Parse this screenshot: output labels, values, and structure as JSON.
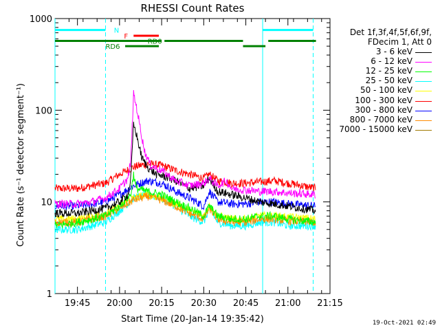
{
  "chart_data": {
    "type": "line",
    "title": "RHESSI Count Rates",
    "xlabel": "Start Time (20-Jan-14 19:35:42)",
    "ylabel": "Count Rate (s⁻¹ detector segment⁻¹)",
    "yscale": "log",
    "ylim": [
      1,
      1000
    ],
    "y_ticks": [
      {
        "value": 1,
        "label": "1"
      },
      {
        "value": 10,
        "label": "10"
      },
      {
        "value": 100,
        "label": "100"
      },
      {
        "value": 1000,
        "label": "1000"
      }
    ],
    "xlim": [
      "19:37",
      "21:15"
    ],
    "x_ticks": [
      "19:45",
      "20:00",
      "20:15",
      "20:30",
      "20:45",
      "21:00",
      "21:15"
    ],
    "legend_placement": "right",
    "legend_title": [
      "Det 1f,3f,4f,5f,6f,9f,",
      "FDecim 1, Att 0"
    ],
    "series": [
      {
        "name": "3 - 6 keV",
        "color": "#000000",
        "points": [
          [
            "19:37",
            7.5
          ],
          [
            "19:45",
            7.5
          ],
          [
            "19:55",
            8.5
          ],
          [
            "20:00",
            10
          ],
          [
            "20:03",
            12
          ],
          [
            "20:04",
            18
          ],
          [
            "20:05",
            70
          ],
          [
            "20:06",
            55
          ],
          [
            "20:07",
            40
          ],
          [
            "20:08",
            30
          ],
          [
            "20:10",
            24
          ],
          [
            "20:13",
            20
          ],
          [
            "20:16",
            19
          ],
          [
            "20:20",
            17
          ],
          [
            "20:25",
            14
          ],
          [
            "20:30",
            15
          ],
          [
            "20:32",
            18
          ],
          [
            "20:35",
            13
          ],
          [
            "20:40",
            12
          ],
          [
            "20:45",
            11
          ],
          [
            "20:50",
            10
          ],
          [
            "20:55",
            9.5
          ],
          [
            "21:00",
            9
          ],
          [
            "21:05",
            8.5
          ],
          [
            "21:10",
            8
          ]
        ]
      },
      {
        "name": "6 - 12 keV",
        "color": "#ff00ff",
        "points": [
          [
            "19:37",
            9.5
          ],
          [
            "19:45",
            9.5
          ],
          [
            "19:50",
            10
          ],
          [
            "19:55",
            11
          ],
          [
            "20:00",
            14
          ],
          [
            "20:03",
            18
          ],
          [
            "20:04",
            28
          ],
          [
            "20:05",
            150
          ],
          [
            "20:06",
            110
          ],
          [
            "20:07",
            75
          ],
          [
            "20:08",
            50
          ],
          [
            "20:09",
            35
          ],
          [
            "20:11",
            25
          ],
          [
            "20:15",
            22
          ],
          [
            "20:20",
            17
          ],
          [
            "20:25",
            15
          ],
          [
            "20:30",
            16
          ],
          [
            "20:32",
            18
          ],
          [
            "20:35",
            15
          ],
          [
            "20:38",
            17
          ],
          [
            "20:40",
            14
          ],
          [
            "20:45",
            13.5
          ],
          [
            "20:50",
            13
          ],
          [
            "20:55",
            13
          ],
          [
            "21:00",
            12.5
          ],
          [
            "21:10",
            12
          ]
        ]
      },
      {
        "name": "12 - 25 keV",
        "color": "#00ff00",
        "points": [
          [
            "19:37",
            5.5
          ],
          [
            "19:45",
            6
          ],
          [
            "19:55",
            7
          ],
          [
            "20:00",
            9
          ],
          [
            "20:04",
            12
          ],
          [
            "20:05",
            20
          ],
          [
            "20:06",
            14
          ],
          [
            "20:10",
            13
          ],
          [
            "20:15",
            12
          ],
          [
            "20:20",
            10
          ],
          [
            "20:25",
            8.5
          ],
          [
            "20:30",
            7
          ],
          [
            "20:32",
            9
          ],
          [
            "20:35",
            7
          ],
          [
            "20:40",
            6.5
          ],
          [
            "20:45",
            6.5
          ],
          [
            "20:50",
            7
          ],
          [
            "20:55",
            7
          ],
          [
            "21:00",
            6.5
          ],
          [
            "21:10",
            6
          ]
        ]
      },
      {
        "name": "25 - 50 keV",
        "color": "#00ffff",
        "points": [
          [
            "19:37",
            5
          ],
          [
            "19:45",
            5
          ],
          [
            "19:55",
            6
          ],
          [
            "20:00",
            8
          ],
          [
            "20:05",
            11
          ],
          [
            "20:10",
            12
          ],
          [
            "20:15",
            11
          ],
          [
            "20:20",
            9
          ],
          [
            "20:25",
            7
          ],
          [
            "20:30",
            6
          ],
          [
            "20:32",
            8.5
          ],
          [
            "20:35",
            6
          ],
          [
            "20:40",
            5.5
          ],
          [
            "20:45",
            5.5
          ],
          [
            "20:50",
            6
          ],
          [
            "20:55",
            6
          ],
          [
            "21:00",
            5.5
          ],
          [
            "21:10",
            5.5
          ]
        ]
      },
      {
        "name": "50 - 100 keV",
        "color": "#ffff00",
        "points": [
          [
            "19:37",
            6.5
          ],
          [
            "19:45",
            6.5
          ],
          [
            "19:55",
            7.5
          ],
          [
            "20:00",
            9
          ],
          [
            "20:05",
            11
          ],
          [
            "20:10",
            12
          ],
          [
            "20:15",
            11
          ],
          [
            "20:20",
            9.5
          ],
          [
            "20:25",
            8
          ],
          [
            "20:30",
            7
          ],
          [
            "20:32",
            9
          ],
          [
            "20:35",
            7
          ],
          [
            "20:40",
            6.5
          ],
          [
            "20:45",
            6.5
          ],
          [
            "20:50",
            7
          ],
          [
            "20:55",
            7
          ],
          [
            "21:00",
            6.8
          ],
          [
            "21:10",
            6.5
          ]
        ]
      },
      {
        "name": "100 - 300 keV",
        "color": "#ff0000",
        "points": [
          [
            "19:37",
            14
          ],
          [
            "19:45",
            14
          ],
          [
            "19:50",
            15
          ],
          [
            "19:55",
            16
          ],
          [
            "20:00",
            20
          ],
          [
            "20:05",
            24
          ],
          [
            "20:10",
            26
          ],
          [
            "20:15",
            25
          ],
          [
            "20:20",
            22
          ],
          [
            "20:25",
            20
          ],
          [
            "20:30",
            18
          ],
          [
            "20:32",
            20
          ],
          [
            "20:35",
            17
          ],
          [
            "20:40",
            16
          ],
          [
            "20:45",
            16
          ],
          [
            "20:50",
            16.5
          ],
          [
            "20:55",
            17
          ],
          [
            "21:00",
            16
          ],
          [
            "21:05",
            15
          ],
          [
            "21:10",
            14
          ]
        ]
      },
      {
        "name": "300 - 800 keV",
        "color": "#0000ff",
        "points": [
          [
            "19:37",
            9
          ],
          [
            "19:45",
            9
          ],
          [
            "19:55",
            10
          ],
          [
            "20:00",
            12
          ],
          [
            "20:05",
            15
          ],
          [
            "20:10",
            17
          ],
          [
            "20:15",
            16
          ],
          [
            "20:20",
            13
          ],
          [
            "20:25",
            11
          ],
          [
            "20:30",
            9
          ],
          [
            "20:32",
            13
          ],
          [
            "20:35",
            10
          ],
          [
            "20:40",
            9.5
          ],
          [
            "20:45",
            9.5
          ],
          [
            "20:50",
            10
          ],
          [
            "20:55",
            10
          ],
          [
            "21:00",
            9.5
          ],
          [
            "21:10",
            9
          ]
        ]
      },
      {
        "name": "800 - 7000 keV",
        "color": "#ff8c00",
        "points": [
          [
            "19:37",
            6
          ],
          [
            "19:45",
            6
          ],
          [
            "19:55",
            7
          ],
          [
            "20:00",
            8.5
          ],
          [
            "20:05",
            10.5
          ],
          [
            "20:10",
            11.5
          ],
          [
            "20:15",
            10.5
          ],
          [
            "20:20",
            9
          ],
          [
            "20:25",
            7.5
          ],
          [
            "20:30",
            6.5
          ],
          [
            "20:32",
            8.5
          ],
          [
            "20:35",
            6.5
          ],
          [
            "20:40",
            6
          ],
          [
            "20:45",
            6
          ],
          [
            "20:50",
            6.5
          ],
          [
            "20:55",
            6.5
          ],
          [
            "21:00",
            6.2
          ],
          [
            "21:10",
            6
          ]
        ]
      },
      {
        "name": "7000 - 15000 keV",
        "color": "#a07800",
        "points": []
      }
    ],
    "annotations": {
      "vertical_lines": [
        {
          "time": "19:37",
          "style": "solid",
          "color": "#00ffff"
        },
        {
          "time": "19:55",
          "style": "dashed",
          "color": "#00ffff"
        },
        {
          "time": "20:51",
          "style": "solid",
          "color": "#00ffff"
        },
        {
          "time": "21:09",
          "style": "dashed",
          "color": "#00ffff"
        }
      ],
      "flag_bars": [
        {
          "label": "N",
          "color": "#00ffff",
          "y": 750,
          "segments": [
            [
              "19:37",
              "19:55"
            ],
            [
              "20:51",
              "21:09"
            ]
          ]
        },
        {
          "label": "F",
          "color": "#ff0000",
          "y": 650,
          "segments": [
            [
              "20:05",
              "20:14"
            ]
          ]
        },
        {
          "label": "RD0",
          "color": "#008000",
          "y": 570,
          "segments": [
            [
              "19:37",
              "19:55"
            ],
            [
              "19:55",
              "20:15"
            ],
            [
              "20:16",
              "20:44"
            ],
            [
              "20:53",
              "21:10"
            ]
          ]
        },
        {
          "label": "RD6",
          "color": "#008000",
          "y": 500,
          "segments": [
            [
              "20:02",
              "20:14"
            ],
            [
              "20:44",
              "20:52"
            ]
          ]
        }
      ]
    }
  },
  "footer": {
    "timestamp": "19-Oct-2021 02:49"
  }
}
